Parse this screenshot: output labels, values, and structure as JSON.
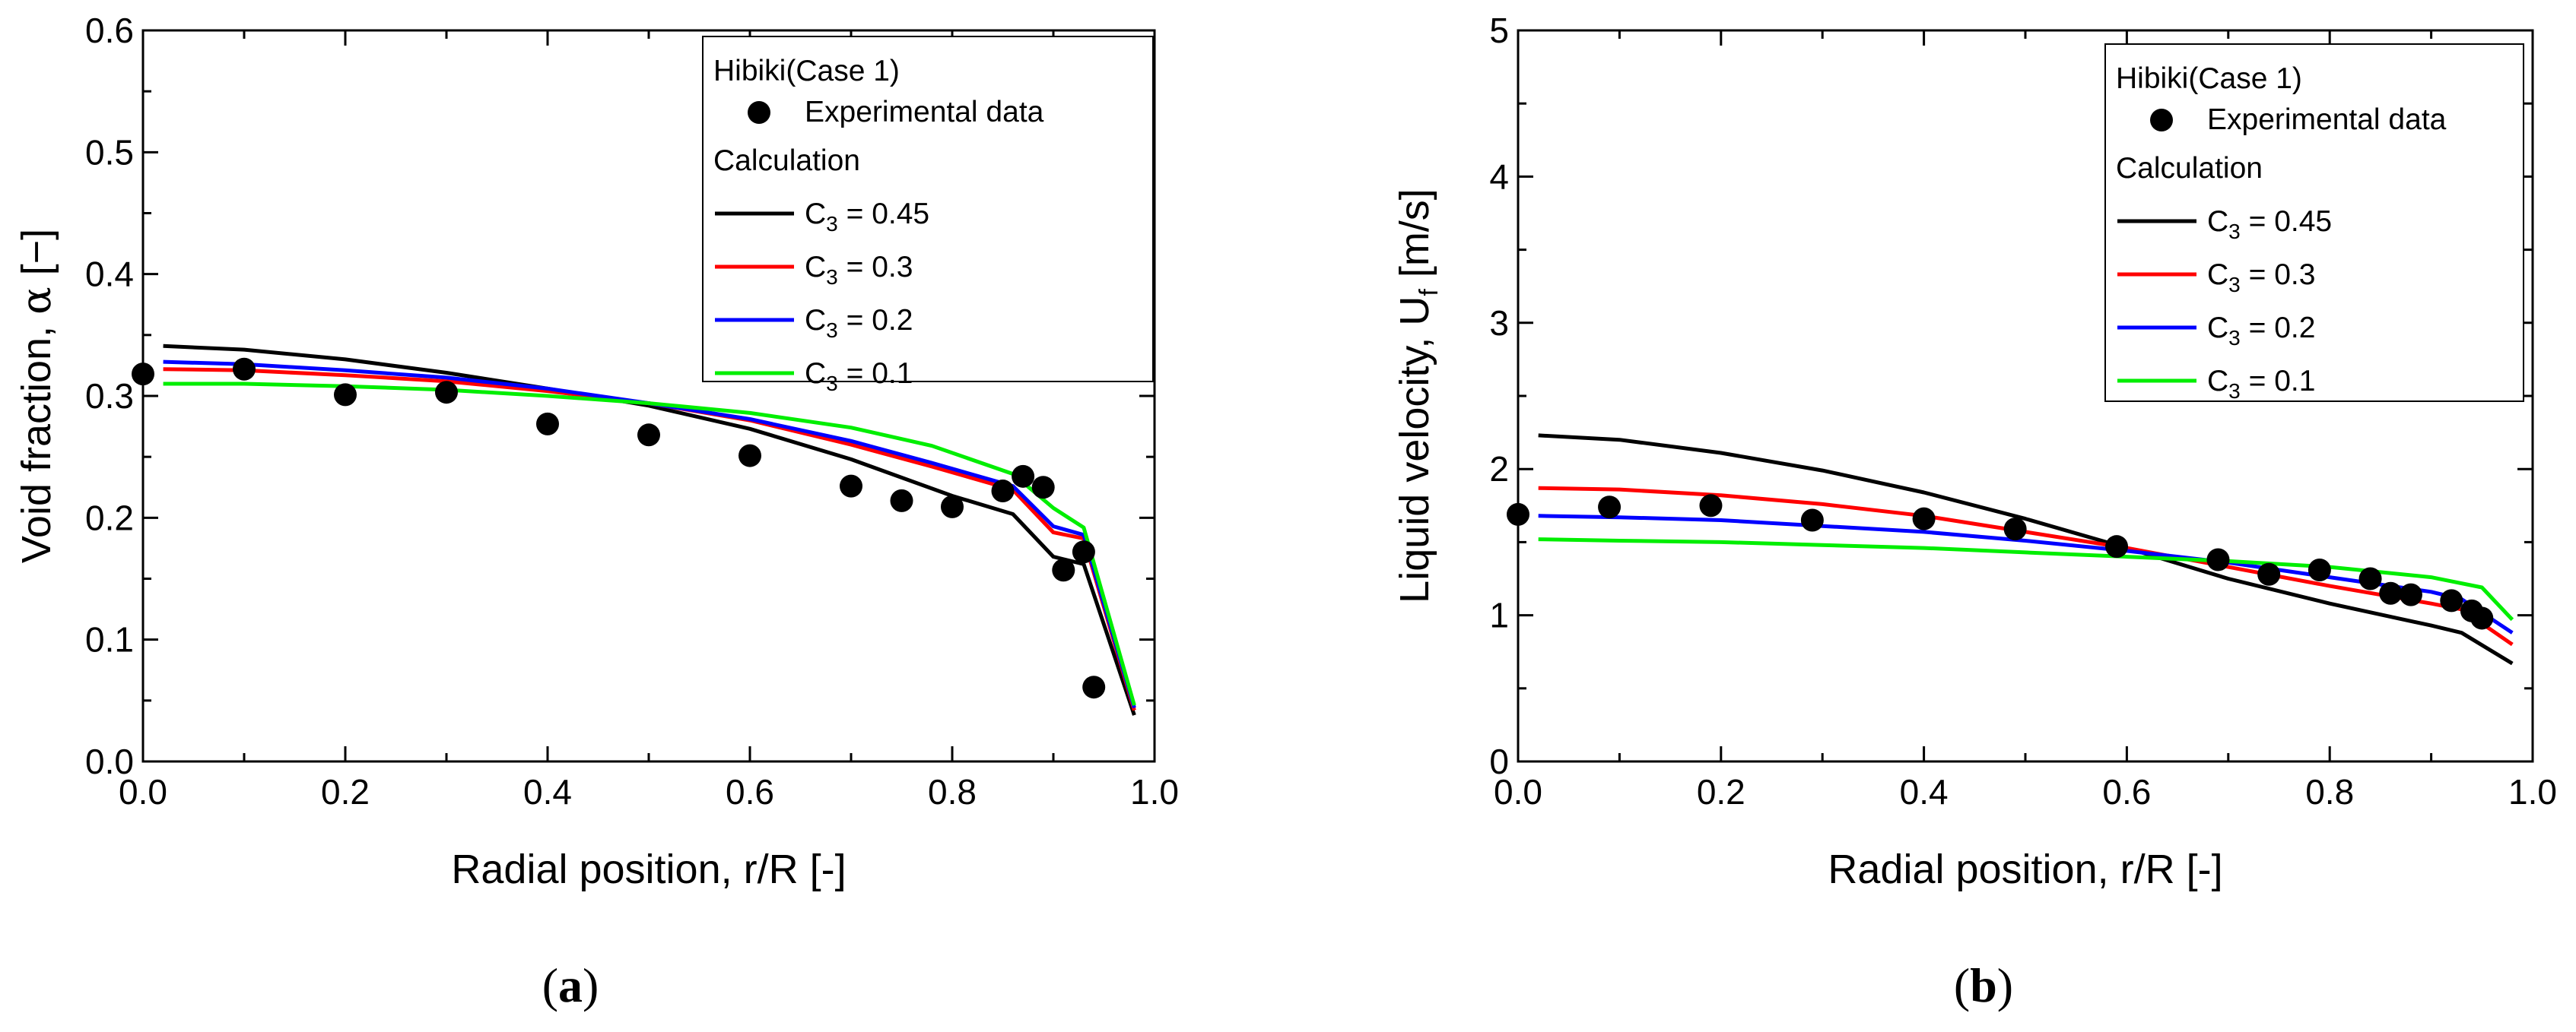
{
  "chart_data": [
    {
      "type": "line",
      "panel_label": "a",
      "xlabel": "Radial position, r/R [-]",
      "ylabel_main": "Void fraction, ",
      "ylabel_symbol": "α",
      "ylabel_unit": " [−]",
      "xlim": [
        0.0,
        1.0
      ],
      "ylim": [
        0.0,
        0.6
      ],
      "xticks": [
        "0.0",
        "0.2",
        "0.4",
        "0.6",
        "0.8",
        "1.0"
      ],
      "yticks": [
        "0.0",
        "0.1",
        "0.2",
        "0.3",
        "0.4",
        "0.5",
        "0.6"
      ],
      "xtick_values": [
        0.0,
        0.2,
        0.4,
        0.6,
        0.8,
        1.0
      ],
      "ytick_values": [
        0.0,
        0.1,
        0.2,
        0.3,
        0.4,
        0.5,
        0.6
      ],
      "legend": {
        "position": "top-right",
        "title": "Hibiki(Case 1)",
        "markers_label": "Experimental data",
        "calc_label": "Calculation",
        "lines": [
          {
            "prefix": "C",
            "sub": "3",
            "suffix": " = 0.45"
          },
          {
            "prefix": "C",
            "sub": "3",
            "suffix": " = 0.3"
          },
          {
            "prefix": "C",
            "sub": "3",
            "suffix": " = 0.2"
          },
          {
            "prefix": "C",
            "sub": "3",
            "suffix": " = 0.1"
          }
        ]
      },
      "experimental": {
        "x": [
          0.0,
          0.1,
          0.2,
          0.3,
          0.4,
          0.5,
          0.6,
          0.7,
          0.75,
          0.8,
          0.85,
          0.87,
          0.89,
          0.91,
          0.93,
          0.94
        ],
        "y": [
          0.318,
          0.322,
          0.301,
          0.303,
          0.277,
          0.268,
          0.251,
          0.226,
          0.214,
          0.209,
          0.222,
          0.234,
          0.225,
          0.157,
          0.172,
          0.061
        ]
      },
      "series": [
        {
          "name": "C3 = 0.45",
          "color": "#000000",
          "x": [
            0.02,
            0.1,
            0.2,
            0.3,
            0.4,
            0.5,
            0.6,
            0.7,
            0.8,
            0.86,
            0.9,
            0.93,
            0.98
          ],
          "y": [
            0.341,
            0.338,
            0.33,
            0.319,
            0.306,
            0.292,
            0.273,
            0.248,
            0.218,
            0.203,
            0.168,
            0.162,
            0.038
          ]
        },
        {
          "name": "C3 = 0.3",
          "color": "#ff0000",
          "x": [
            0.02,
            0.1,
            0.2,
            0.3,
            0.4,
            0.5,
            0.6,
            0.7,
            0.78,
            0.86,
            0.9,
            0.93,
            0.98
          ],
          "y": [
            0.322,
            0.321,
            0.317,
            0.312,
            0.304,
            0.294,
            0.28,
            0.26,
            0.242,
            0.223,
            0.188,
            0.183,
            0.042
          ]
        },
        {
          "name": "C3 = 0.2",
          "color": "#0000ff",
          "x": [
            0.02,
            0.1,
            0.2,
            0.3,
            0.4,
            0.5,
            0.6,
            0.7,
            0.78,
            0.86,
            0.9,
            0.93,
            0.98
          ],
          "y": [
            0.328,
            0.326,
            0.321,
            0.315,
            0.306,
            0.294,
            0.281,
            0.263,
            0.245,
            0.226,
            0.193,
            0.186,
            0.044
          ]
        },
        {
          "name": "C3 = 0.1",
          "color": "#00ee00",
          "x": [
            0.02,
            0.1,
            0.2,
            0.3,
            0.4,
            0.5,
            0.6,
            0.7,
            0.78,
            0.86,
            0.9,
            0.93,
            0.98
          ],
          "y": [
            0.31,
            0.31,
            0.308,
            0.305,
            0.3,
            0.294,
            0.286,
            0.274,
            0.259,
            0.236,
            0.208,
            0.192,
            0.046
          ]
        }
      ]
    },
    {
      "type": "line",
      "panel_label": "b",
      "xlabel": "Radial position, r/R [-]",
      "ylabel_main": "Liquid velocity, U",
      "ylabel_sub": "f",
      "ylabel_unit": " [m/s]",
      "xlim": [
        0.0,
        1.0
      ],
      "ylim": [
        0,
        5
      ],
      "xticks": [
        "0.0",
        "0.2",
        "0.4",
        "0.6",
        "0.8",
        "1.0"
      ],
      "yticks": [
        "0",
        "1",
        "2",
        "3",
        "4",
        "5"
      ],
      "xtick_values": [
        0.0,
        0.2,
        0.4,
        0.6,
        0.8,
        1.0
      ],
      "ytick_values": [
        0,
        1,
        2,
        3,
        4,
        5
      ],
      "legend": {
        "position": "top-right",
        "title": "Hibiki(Case 1)",
        "markers_label": "Experimental data",
        "calc_label": "Calculation",
        "lines": [
          {
            "prefix": "C",
            "sub": "3",
            "suffix": " = 0.45"
          },
          {
            "prefix": "C",
            "sub": "3",
            "suffix": " = 0.3"
          },
          {
            "prefix": "C",
            "sub": "3",
            "suffix": " = 0.2"
          },
          {
            "prefix": "C",
            "sub": "3",
            "suffix": " = 0.1"
          }
        ]
      },
      "experimental": {
        "x": [
          0.0,
          0.09,
          0.19,
          0.29,
          0.4,
          0.49,
          0.59,
          0.69,
          0.74,
          0.79,
          0.84,
          0.86,
          0.88,
          0.92,
          0.94,
          0.95
        ],
        "y": [
          1.69,
          1.74,
          1.75,
          1.65,
          1.66,
          1.59,
          1.47,
          1.38,
          1.28,
          1.31,
          1.25,
          1.15,
          1.14,
          1.1,
          1.03,
          0.98
        ]
      },
      "series": [
        {
          "name": "C3 = 0.45",
          "color": "#000000",
          "x": [
            0.02,
            0.1,
            0.2,
            0.3,
            0.4,
            0.5,
            0.6,
            0.7,
            0.8,
            0.9,
            0.93,
            0.98
          ],
          "y": [
            2.23,
            2.2,
            2.11,
            1.99,
            1.84,
            1.66,
            1.46,
            1.25,
            1.08,
            0.93,
            0.88,
            0.67
          ]
        },
        {
          "name": "C3 = 0.3",
          "color": "#ff0000",
          "x": [
            0.02,
            0.1,
            0.2,
            0.3,
            0.4,
            0.5,
            0.6,
            0.7,
            0.8,
            0.9,
            0.93,
            0.98
          ],
          "y": [
            1.87,
            1.86,
            1.82,
            1.76,
            1.68,
            1.57,
            1.46,
            1.33,
            1.2,
            1.08,
            1.04,
            0.8
          ]
        },
        {
          "name": "C3 = 0.2",
          "color": "#0000ff",
          "x": [
            0.02,
            0.1,
            0.2,
            0.3,
            0.4,
            0.5,
            0.6,
            0.7,
            0.8,
            0.9,
            0.93,
            0.98
          ],
          "y": [
            1.68,
            1.67,
            1.65,
            1.61,
            1.57,
            1.51,
            1.44,
            1.36,
            1.26,
            1.16,
            1.11,
            0.88
          ]
        },
        {
          "name": "C3 = 0.1",
          "color": "#00ee00",
          "x": [
            0.02,
            0.1,
            0.2,
            0.3,
            0.4,
            0.5,
            0.6,
            0.7,
            0.8,
            0.9,
            0.95,
            0.98
          ],
          "y": [
            1.52,
            1.51,
            1.5,
            1.48,
            1.46,
            1.43,
            1.4,
            1.37,
            1.33,
            1.26,
            1.19,
            0.97
          ]
        }
      ]
    }
  ]
}
